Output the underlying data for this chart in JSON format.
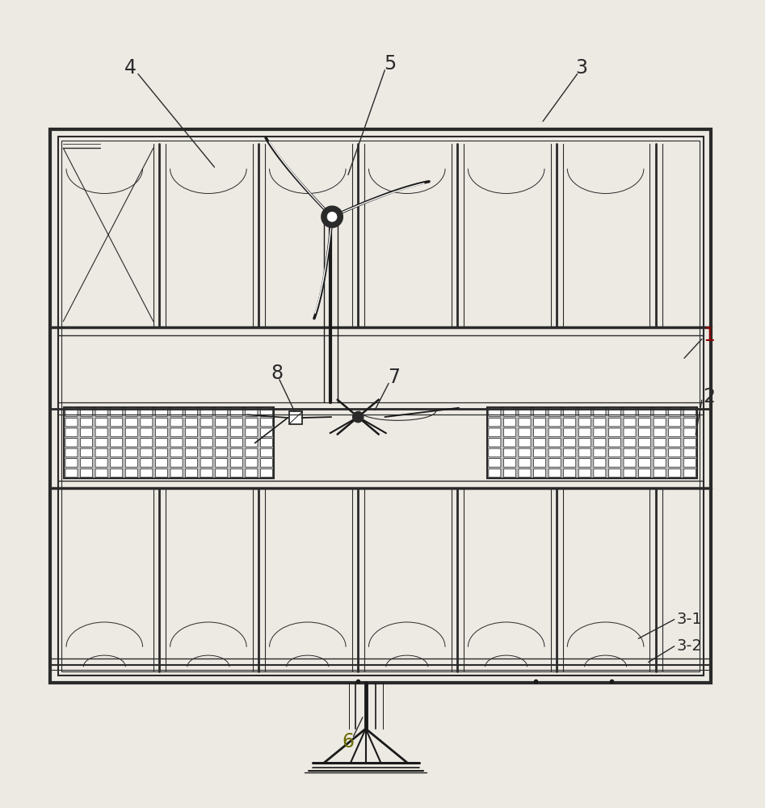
{
  "bg_color": "#ede9e3",
  "line_color": "#2a2a2a",
  "dark_color": "#1a1a1a",
  "label_color_dark": "#8B0000",
  "label_color": "#1a1a1a",
  "fig_width": 9.47,
  "fig_height": 10.0
}
